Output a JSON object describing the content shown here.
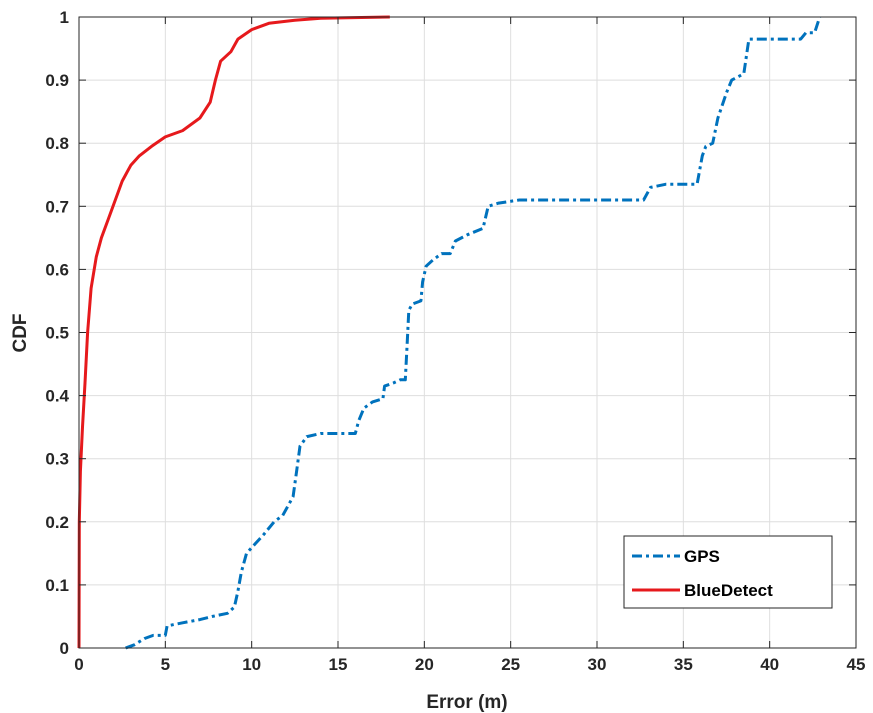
{
  "chart_data": {
    "type": "line",
    "title": "",
    "xlabel": "Error (m)",
    "ylabel": "CDF",
    "xlim": [
      0,
      45
    ],
    "ylim": [
      0,
      1
    ],
    "xticks": [
      "0",
      "5",
      "10",
      "15",
      "20",
      "25",
      "30",
      "35",
      "40",
      "45"
    ],
    "yticks": [
      "0",
      "0.1",
      "0.2",
      "0.3",
      "0.4",
      "0.5",
      "0.6",
      "0.7",
      "0.8",
      "0.9",
      "1"
    ],
    "grid": true,
    "legend_position": "bottom-right",
    "series": [
      {
        "name": "GPS",
        "color": "#0072BD",
        "style": "dash-dot",
        "points": [
          [
            2.7,
            0
          ],
          [
            3.2,
            0.005
          ],
          [
            3.8,
            0.015
          ],
          [
            4.3,
            0.02
          ],
          [
            5.0,
            0.02
          ],
          [
            5.1,
            0.035
          ],
          [
            6.0,
            0.04
          ],
          [
            7.0,
            0.045
          ],
          [
            7.7,
            0.05
          ],
          [
            8.6,
            0.055
          ],
          [
            9.0,
            0.065
          ],
          [
            9.2,
            0.09
          ],
          [
            9.4,
            0.12
          ],
          [
            9.7,
            0.15
          ],
          [
            10.2,
            0.165
          ],
          [
            10.7,
            0.18
          ],
          [
            11.3,
            0.2
          ],
          [
            11.8,
            0.21
          ],
          [
            12.4,
            0.24
          ],
          [
            12.6,
            0.28
          ],
          [
            12.8,
            0.32
          ],
          [
            13.2,
            0.335
          ],
          [
            14.0,
            0.34
          ],
          [
            16.0,
            0.34
          ],
          [
            16.2,
            0.36
          ],
          [
            16.5,
            0.38
          ],
          [
            17.0,
            0.39
          ],
          [
            17.6,
            0.395
          ],
          [
            17.7,
            0.415
          ],
          [
            18.2,
            0.42
          ],
          [
            18.6,
            0.425
          ],
          [
            18.9,
            0.425
          ],
          [
            19.0,
            0.48
          ],
          [
            19.1,
            0.535
          ],
          [
            19.3,
            0.545
          ],
          [
            19.8,
            0.55
          ],
          [
            19.9,
            0.58
          ],
          [
            20.1,
            0.605
          ],
          [
            20.5,
            0.615
          ],
          [
            21.0,
            0.625
          ],
          [
            21.5,
            0.625
          ],
          [
            21.8,
            0.645
          ],
          [
            22.5,
            0.655
          ],
          [
            23.4,
            0.665
          ],
          [
            23.7,
            0.7
          ],
          [
            24.3,
            0.705
          ],
          [
            25.5,
            0.71
          ],
          [
            29.0,
            0.71
          ],
          [
            32.7,
            0.71
          ],
          [
            33.1,
            0.73
          ],
          [
            34.0,
            0.735
          ],
          [
            35.8,
            0.735
          ],
          [
            36.1,
            0.78
          ],
          [
            36.3,
            0.795
          ],
          [
            36.7,
            0.8
          ],
          [
            37.0,
            0.84
          ],
          [
            37.5,
            0.88
          ],
          [
            37.8,
            0.9
          ],
          [
            38.5,
            0.91
          ],
          [
            38.8,
            0.965
          ],
          [
            40.0,
            0.965
          ],
          [
            41.8,
            0.965
          ],
          [
            42.1,
            0.975
          ],
          [
            42.6,
            0.975
          ],
          [
            42.9,
            1.0
          ]
        ]
      },
      {
        "name": "BlueDetect",
        "color": "#E6191C",
        "style": "solid",
        "points": [
          [
            0,
            0
          ],
          [
            0.02,
            0.2
          ],
          [
            0.08,
            0.28
          ],
          [
            0.2,
            0.35
          ],
          [
            0.35,
            0.42
          ],
          [
            0.5,
            0.5
          ],
          [
            0.7,
            0.57
          ],
          [
            1.0,
            0.62
          ],
          [
            1.3,
            0.65
          ],
          [
            1.7,
            0.68
          ],
          [
            2.1,
            0.71
          ],
          [
            2.5,
            0.74
          ],
          [
            3.0,
            0.765
          ],
          [
            3.5,
            0.78
          ],
          [
            4.2,
            0.795
          ],
          [
            5.0,
            0.81
          ],
          [
            6.0,
            0.82
          ],
          [
            7.0,
            0.84
          ],
          [
            7.6,
            0.865
          ],
          [
            7.9,
            0.9
          ],
          [
            8.2,
            0.93
          ],
          [
            8.8,
            0.945
          ],
          [
            9.2,
            0.965
          ],
          [
            10.0,
            0.98
          ],
          [
            11.0,
            0.99
          ],
          [
            12.5,
            0.995
          ],
          [
            14.0,
            0.998
          ],
          [
            18.0,
            1.0
          ]
        ]
      }
    ]
  }
}
